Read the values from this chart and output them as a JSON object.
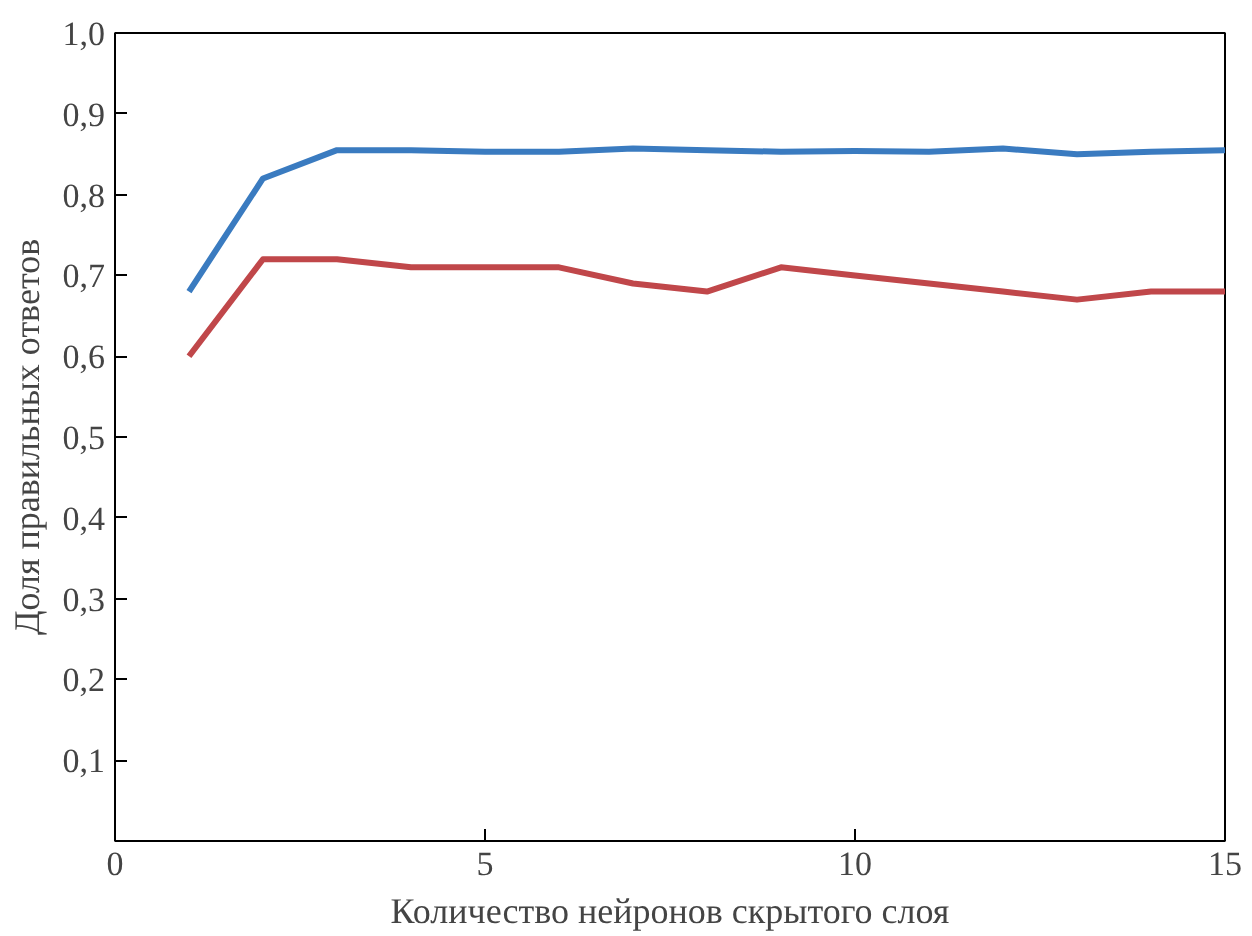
{
  "chart_data": {
    "type": "line",
    "xlabel": "Количество нейронов скрытого слоя",
    "ylabel": "Доля правильных ответов",
    "x": [
      1,
      2,
      3,
      4,
      5,
      6,
      7,
      8,
      9,
      10,
      11,
      12,
      13,
      14,
      15
    ],
    "series": [
      {
        "color": "#3a7bc0",
        "values": [
          0.68,
          0.82,
          0.855,
          0.855,
          0.853,
          0.853,
          0.857,
          0.855,
          0.853,
          0.854,
          0.853,
          0.857,
          0.85,
          0.853,
          0.855
        ]
      },
      {
        "color": "#c0474a",
        "values": [
          0.6,
          0.72,
          0.72,
          0.71,
          0.71,
          0.71,
          0.69,
          0.68,
          0.71,
          0.7,
          0.69,
          0.68,
          0.67,
          0.68,
          0.68
        ]
      }
    ],
    "xlim": [
      0,
      15
    ],
    "ylim": [
      0,
      1
    ],
    "xticks": [
      0,
      5,
      10,
      15
    ],
    "yticks": [
      {
        "value": 0.1,
        "label": "0,1"
      },
      {
        "value": 0.2,
        "label": "0,2"
      },
      {
        "value": 0.3,
        "label": "0,3"
      },
      {
        "value": 0.4,
        "label": "0,4"
      },
      {
        "value": 0.5,
        "label": "0,5"
      },
      {
        "value": 0.6,
        "label": "0,6"
      },
      {
        "value": 0.7,
        "label": "0,7"
      },
      {
        "value": 0.8,
        "label": "0,8"
      },
      {
        "value": 0.9,
        "label": "0,9"
      },
      {
        "value": 1.0,
        "label": "1,0"
      }
    ],
    "grid": false,
    "marker": "none",
    "line_style": "solid"
  }
}
